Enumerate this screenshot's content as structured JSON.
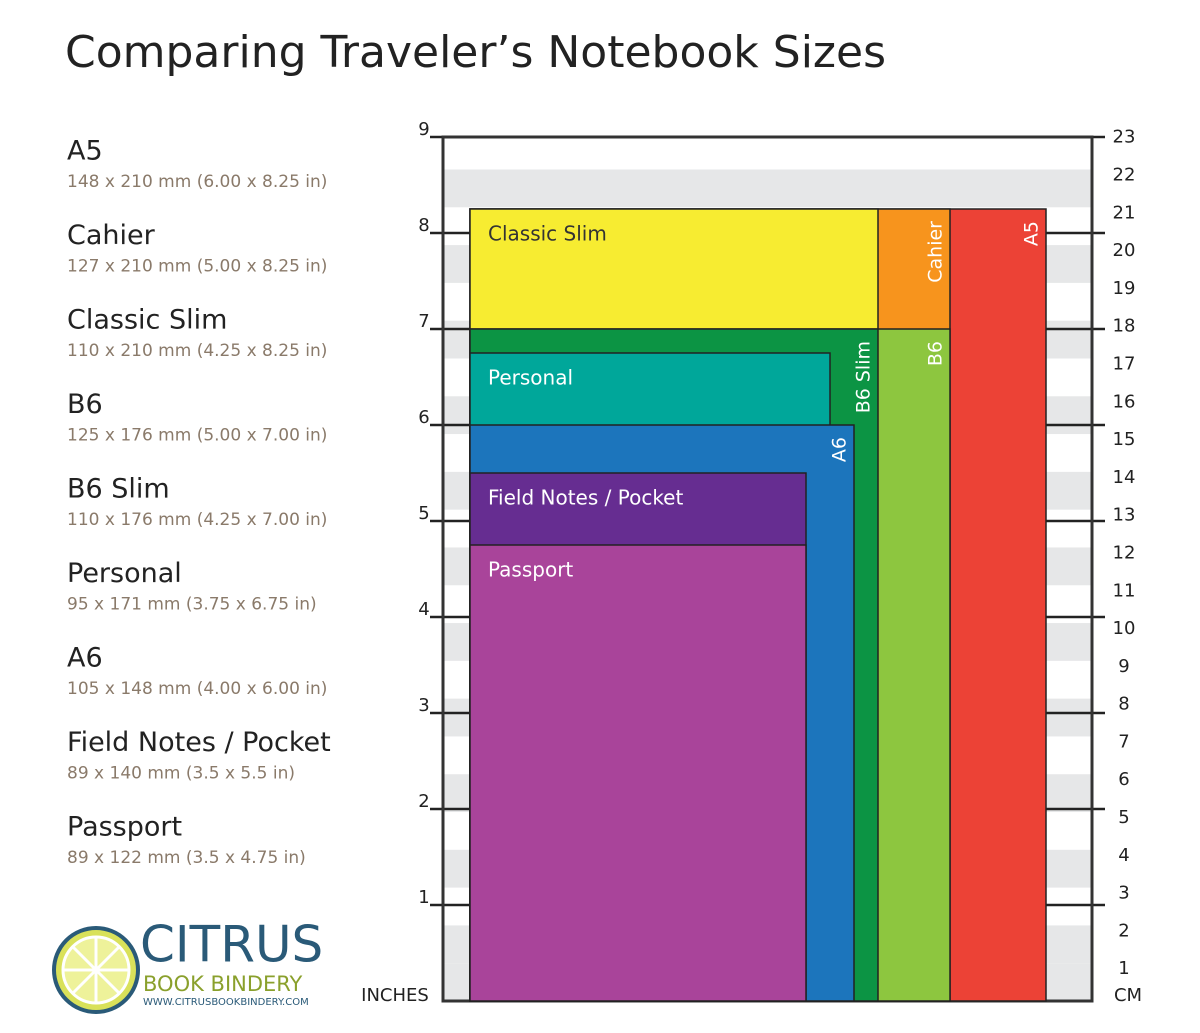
{
  "title": "Comparing Traveler’s Notebook Sizes",
  "logo": {
    "name": "CITRUS",
    "subtitle": "BOOK BINDERY",
    "url": "WWW.CITRUSBOOKBINDERY.COM"
  },
  "chart_data": {
    "type": "rect",
    "x_label": "INCHES",
    "y2_label": "CM",
    "ylim": [
      0,
      9
    ],
    "yticks": [
      1,
      2,
      3,
      4,
      5,
      6,
      7,
      8,
      9
    ],
    "y2lim": [
      0,
      22.86
    ],
    "y2ticks": [
      1,
      2,
      3,
      4,
      5,
      6,
      7,
      8,
      9,
      10,
      11,
      12,
      13,
      14,
      15,
      16,
      17,
      18,
      19,
      20,
      21,
      22,
      23
    ],
    "series": [
      {
        "name": "A5",
        "spec": "148 x 210 mm (6.00 x 8.25 in)",
        "color": "#ec4236",
        "width": 6,
        "height": 8.25
      },
      {
        "name": "Cahier",
        "spec": "127 x 210 mm (5.00 x 8.25 in)",
        "color": "#f7941d",
        "width": 5,
        "height": 8.25
      },
      {
        "name": "Classic Slim",
        "spec": "110 x 210 mm (4.25 x 8.25 in)",
        "color": "#f7ec31",
        "width": 4.25,
        "height": 8.25
      },
      {
        "name": "B6",
        "spec": "125 x 176 mm (5.00 x 7.00 in)",
        "color": "#8dc63f",
        "width": 5,
        "height": 7
      },
      {
        "name": "B6 Slim",
        "spec": "110 x 176 mm (4.25 x 7.00 in)",
        "color": "#0c9444",
        "width": 4.25,
        "height": 7
      },
      {
        "name": "Personal",
        "spec": "95 x 171 mm (3.75 x 6.75 in)",
        "color": "#00a79a",
        "width": 3.75,
        "height": 6.75
      },
      {
        "name": "A6",
        "spec": "105 x 148 mm (4.00 x 6.00 in)",
        "color": "#1c75bc",
        "width": 4,
        "height": 6
      },
      {
        "name": "Field Notes / Pocket",
        "spec": "89 x 140 mm (3.5 x 5.5 in)",
        "color": "#662d91",
        "width": 3.5,
        "height": 5.5
      },
      {
        "name": "Passport",
        "spec": "89 x 122 mm (3.5 x 4.75 in)",
        "color": "#a9449a",
        "width": 3.5,
        "height": 4.75
      }
    ]
  }
}
